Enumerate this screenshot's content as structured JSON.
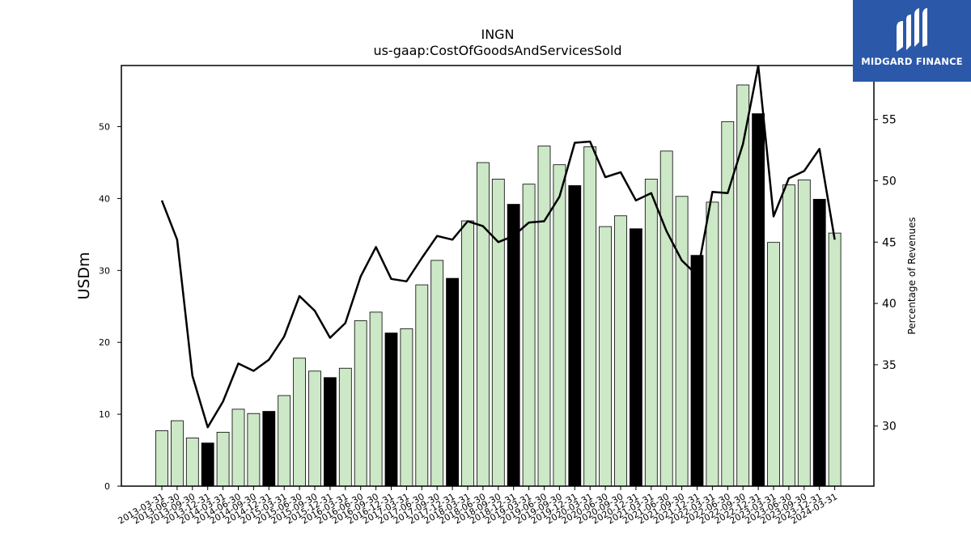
{
  "chart_data": {
    "type": "bar+line",
    "title": "INGN",
    "subtitle": "us-gaap:CostOfGoodsAndServicesSold",
    "ylabel": "USDm",
    "y2label": "Percentage of Revenues",
    "ylim": [
      0,
      58.5
    ],
    "y2lim": [
      25.1,
      59.4
    ],
    "yticks": [
      0,
      10,
      20,
      30,
      40,
      50
    ],
    "y2ticks": [
      30,
      35,
      40,
      45,
      50,
      55
    ],
    "categories": [
      "2013-03-31",
      "2013-06-30",
      "2013-09-30",
      "2013-12-31",
      "2014-03-31",
      "2014-06-30",
      "2014-09-30",
      "2014-12-31",
      "2015-03-31",
      "2015-06-30",
      "2015-09-30",
      "2015-12-31",
      "2016-03-31",
      "2016-06-30",
      "2016-09-30",
      "2016-12-31",
      "2017-03-31",
      "2017-06-30",
      "2017-09-30",
      "2017-12-31",
      "2018-03-31",
      "2018-06-30",
      "2018-09-30",
      "2018-12-31",
      "2019-03-31",
      "2019-06-30",
      "2019-09-30",
      "2019-12-31",
      "2020-03-31",
      "2020-06-30",
      "2020-09-30",
      "2020-12-31",
      "2021-03-31",
      "2021-06-30",
      "2021-09-30",
      "2021-12-31",
      "2022-03-31",
      "2022-06-30",
      "2022-09-30",
      "2022-12-31",
      "2023-03-31",
      "2023-06-30",
      "2023-09-30",
      "2023-12-31",
      "2024-03-31"
    ],
    "series": [
      {
        "kind": "bar",
        "values": [
          7.7,
          9.1,
          6.7,
          6.0,
          7.5,
          10.7,
          10.1,
          10.4,
          12.6,
          17.8,
          16.0,
          15.1,
          16.4,
          23.0,
          24.2,
          21.3,
          21.9,
          28.0,
          31.4,
          28.9,
          36.9,
          45.0,
          42.7,
          39.2,
          42.0,
          47.3,
          44.7,
          41.8,
          47.2,
          36.1,
          37.6,
          35.8,
          42.7,
          46.6,
          40.3,
          32.1,
          39.5,
          50.7,
          55.8,
          51.8,
          33.9,
          41.9,
          42.6,
          39.9,
          35.2
        ],
        "highlight": [
          false,
          false,
          false,
          true,
          false,
          false,
          false,
          true,
          false,
          false,
          false,
          true,
          false,
          false,
          false,
          true,
          false,
          false,
          false,
          true,
          false,
          false,
          false,
          true,
          false,
          false,
          false,
          true,
          false,
          false,
          false,
          true,
          false,
          false,
          false,
          true,
          false,
          false,
          false,
          true,
          false,
          false,
          false,
          true,
          false
        ],
        "colors": {
          "normal": "#cce8c6",
          "highlight": "#000000",
          "edge": "#000000"
        }
      },
      {
        "kind": "line",
        "axis": "right",
        "values": [
          48.4,
          45.2,
          34.1,
          29.9,
          32.0,
          35.1,
          34.5,
          35.4,
          37.3,
          40.6,
          39.4,
          37.2,
          38.4,
          42.2,
          44.6,
          42.0,
          41.8,
          43.7,
          45.5,
          45.2,
          46.7,
          46.3,
          45.0,
          45.5,
          46.6,
          46.7,
          48.7,
          53.1,
          53.2,
          50.3,
          50.7,
          48.4,
          49.0,
          45.9,
          43.5,
          42.3,
          49.1,
          49.0,
          53.0,
          59.4,
          47.1,
          50.2,
          50.8,
          52.6,
          45.2
        ],
        "color": "#000000"
      }
    ]
  },
  "logo": {
    "text": "MIDGARD FINANCE"
  }
}
